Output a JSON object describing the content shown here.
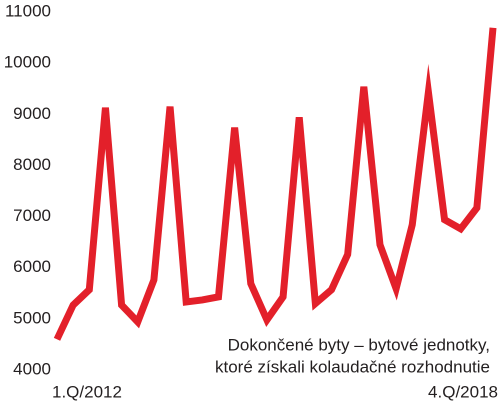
{
  "chart_data": {
    "type": "line",
    "categories": [
      "1.Q/2012",
      null,
      null,
      null,
      null,
      null,
      null,
      null,
      null,
      null,
      null,
      null,
      null,
      null,
      null,
      null,
      null,
      null,
      null,
      null,
      null,
      null,
      null,
      null,
      null,
      null,
      null,
      "4.Q/2018"
    ],
    "series": [
      {
        "color": "#e3202a",
        "values": [
          4600,
          5270,
          5570,
          9130,
          5270,
          4940,
          5760,
          9150,
          5330,
          5370,
          5430,
          8740,
          5690,
          4980,
          5430,
          8940,
          5300,
          5570,
          6260,
          9540,
          6450,
          5590,
          6840,
          9430,
          6940,
          6760,
          7170,
          10690
        ]
      }
    ],
    "ylim": [
      4000,
      11000
    ],
    "yticks": [
      4000,
      5000,
      6000,
      7000,
      8000,
      9000,
      10000,
      11000
    ],
    "annotation": [
      "Dokončené byty – bytové jednotky,",
      "ktoré získali kolaudačné rozhodnutie"
    ],
    "grid": false
  }
}
